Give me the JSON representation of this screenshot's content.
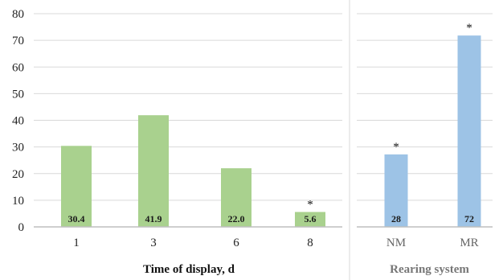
{
  "chart_data": [
    {
      "type": "bar",
      "categories": [
        "1",
        "3",
        "6",
        "8"
      ],
      "values": [
        30.4,
        41.9,
        22.0,
        5.6
      ],
      "data_labels": [
        "30.4",
        "41.9",
        "22.0",
        "5.6"
      ],
      "significance": [
        "",
        "",
        "",
        "*"
      ],
      "xlabel": "Time of display, d",
      "ylabel": "",
      "ylim": [
        0,
        80
      ],
      "yticks": [
        "0",
        "10",
        "20",
        "30",
        "40",
        "50",
        "60",
        "70",
        "80"
      ],
      "grid": true,
      "bar_color": "#a9d18e"
    },
    {
      "type": "bar",
      "categories": [
        "NM",
        "MR"
      ],
      "values": [
        28,
        72
      ],
      "bar_heights_shown": [
        27.2,
        71.8
      ],
      "data_labels": [
        "28",
        "72"
      ],
      "significance": [
        "*",
        "*"
      ],
      "xlabel": "Rearing system",
      "ylabel": "",
      "ylim": [
        0,
        80
      ],
      "grid": true,
      "bar_color": "#9dc3e6"
    }
  ]
}
